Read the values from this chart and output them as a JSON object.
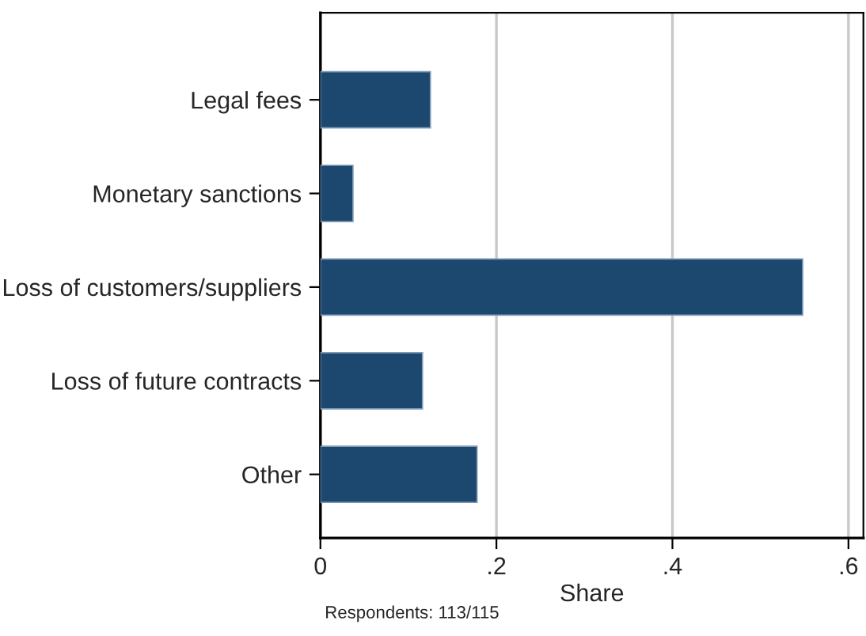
{
  "chart_data": {
    "type": "bar",
    "orientation": "horizontal",
    "xlabel": "Share",
    "categories": [
      "Legal fees",
      "Monetary sanctions",
      "Loss of customers/suppliers",
      "Loss of future contracts",
      "Other"
    ],
    "values": [
      0.125,
      0.037,
      0.548,
      0.116,
      0.178
    ],
    "color": "#1c476f",
    "xlim": [
      0,
      0.617
    ],
    "xticks": [
      0,
      {
        "value": 0.2,
        "label": ".2"
      },
      {
        "value": 0.4,
        "label": ".4"
      },
      {
        "value": 0.6,
        "label": ".6"
      }
    ],
    "grid": "x",
    "annotations": [
      "Respondents: 113/115"
    ]
  }
}
